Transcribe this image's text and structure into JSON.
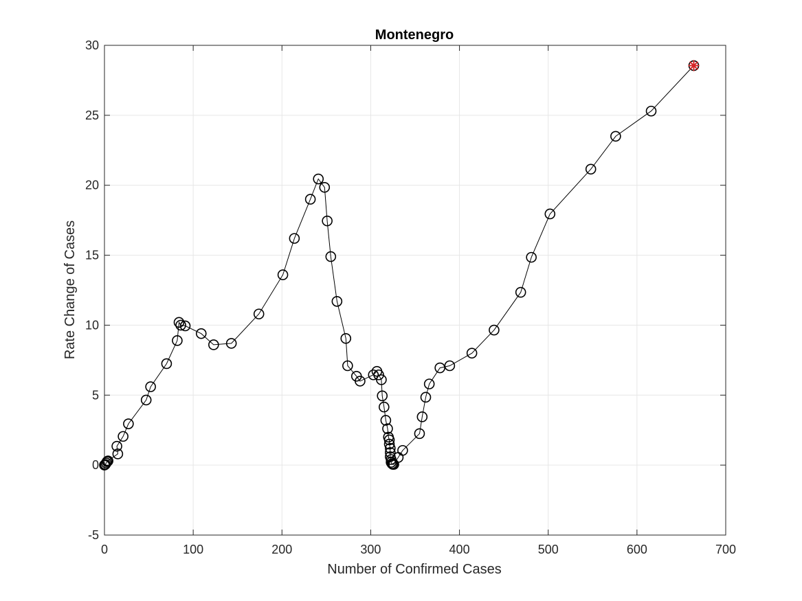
{
  "chart_data": {
    "type": "line",
    "title": "Montenegro",
    "xlabel": "Number of Confirmed Cases",
    "ylabel": "Rate Change of Cases",
    "xlim": [
      0,
      700
    ],
    "ylim": [
      -5,
      30
    ],
    "xticks": [
      0,
      100,
      200,
      300,
      400,
      500,
      600,
      700
    ],
    "yticks": [
      -5,
      0,
      5,
      10,
      15,
      20,
      25,
      30
    ],
    "grid": true,
    "series": [
      {
        "marker": "circle",
        "line_color": "#000000",
        "marker_color": "#000000",
        "points": [
          [
            0,
            0.0
          ],
          [
            1,
            0.05
          ],
          [
            2,
            0.15
          ],
          [
            3,
            0.25
          ],
          [
            4,
            0.3
          ],
          [
            15,
            0.8
          ],
          [
            14,
            1.35
          ],
          [
            21,
            2.05
          ],
          [
            27,
            2.95
          ],
          [
            47,
            4.65
          ],
          [
            52,
            5.6
          ],
          [
            70,
            7.25
          ],
          [
            82,
            8.9
          ],
          [
            84,
            10.2
          ],
          [
            86,
            10.0
          ],
          [
            91,
            9.95
          ],
          [
            109,
            9.4
          ],
          [
            123,
            8.6
          ],
          [
            143,
            8.7
          ],
          [
            174,
            10.8
          ],
          [
            201,
            13.6
          ],
          [
            214,
            16.2
          ],
          [
            232,
            19.0
          ],
          [
            241,
            20.45
          ],
          [
            248,
            19.85
          ],
          [
            251,
            17.45
          ],
          [
            255,
            14.9
          ],
          [
            262,
            11.7
          ],
          [
            272,
            9.05
          ],
          [
            274,
            7.1
          ],
          [
            284,
            6.35
          ],
          [
            288,
            6.0
          ],
          [
            303,
            6.45
          ],
          [
            307,
            6.7
          ],
          [
            309,
            6.45
          ],
          [
            312,
            6.1
          ],
          [
            313,
            4.95
          ],
          [
            315,
            4.15
          ],
          [
            317,
            3.2
          ],
          [
            319,
            2.6
          ],
          [
            320,
            2.0
          ],
          [
            321,
            1.8
          ],
          [
            321,
            1.5
          ],
          [
            322,
            1.2
          ],
          [
            322,
            0.9
          ],
          [
            322,
            0.6
          ],
          [
            323,
            0.4
          ],
          [
            323,
            0.2
          ],
          [
            324,
            0.1
          ],
          [
            325,
            0.05
          ],
          [
            326,
            0.05
          ],
          [
            331,
            0.55
          ],
          [
            336,
            1.05
          ],
          [
            355,
            2.25
          ],
          [
            358,
            3.45
          ],
          [
            362,
            4.85
          ],
          [
            366,
            5.8
          ],
          [
            378,
            6.95
          ],
          [
            389,
            7.1
          ],
          [
            414,
            8.0
          ],
          [
            439,
            9.65
          ],
          [
            469,
            12.35
          ],
          [
            481,
            14.85
          ],
          [
            502,
            17.95
          ],
          [
            548,
            21.15
          ],
          [
            576,
            23.5
          ],
          [
            616,
            25.3
          ],
          [
            664,
            28.55
          ]
        ]
      }
    ],
    "highlight": {
      "point": [
        664,
        28.55
      ],
      "marker": "star",
      "color": "#d62728"
    }
  }
}
